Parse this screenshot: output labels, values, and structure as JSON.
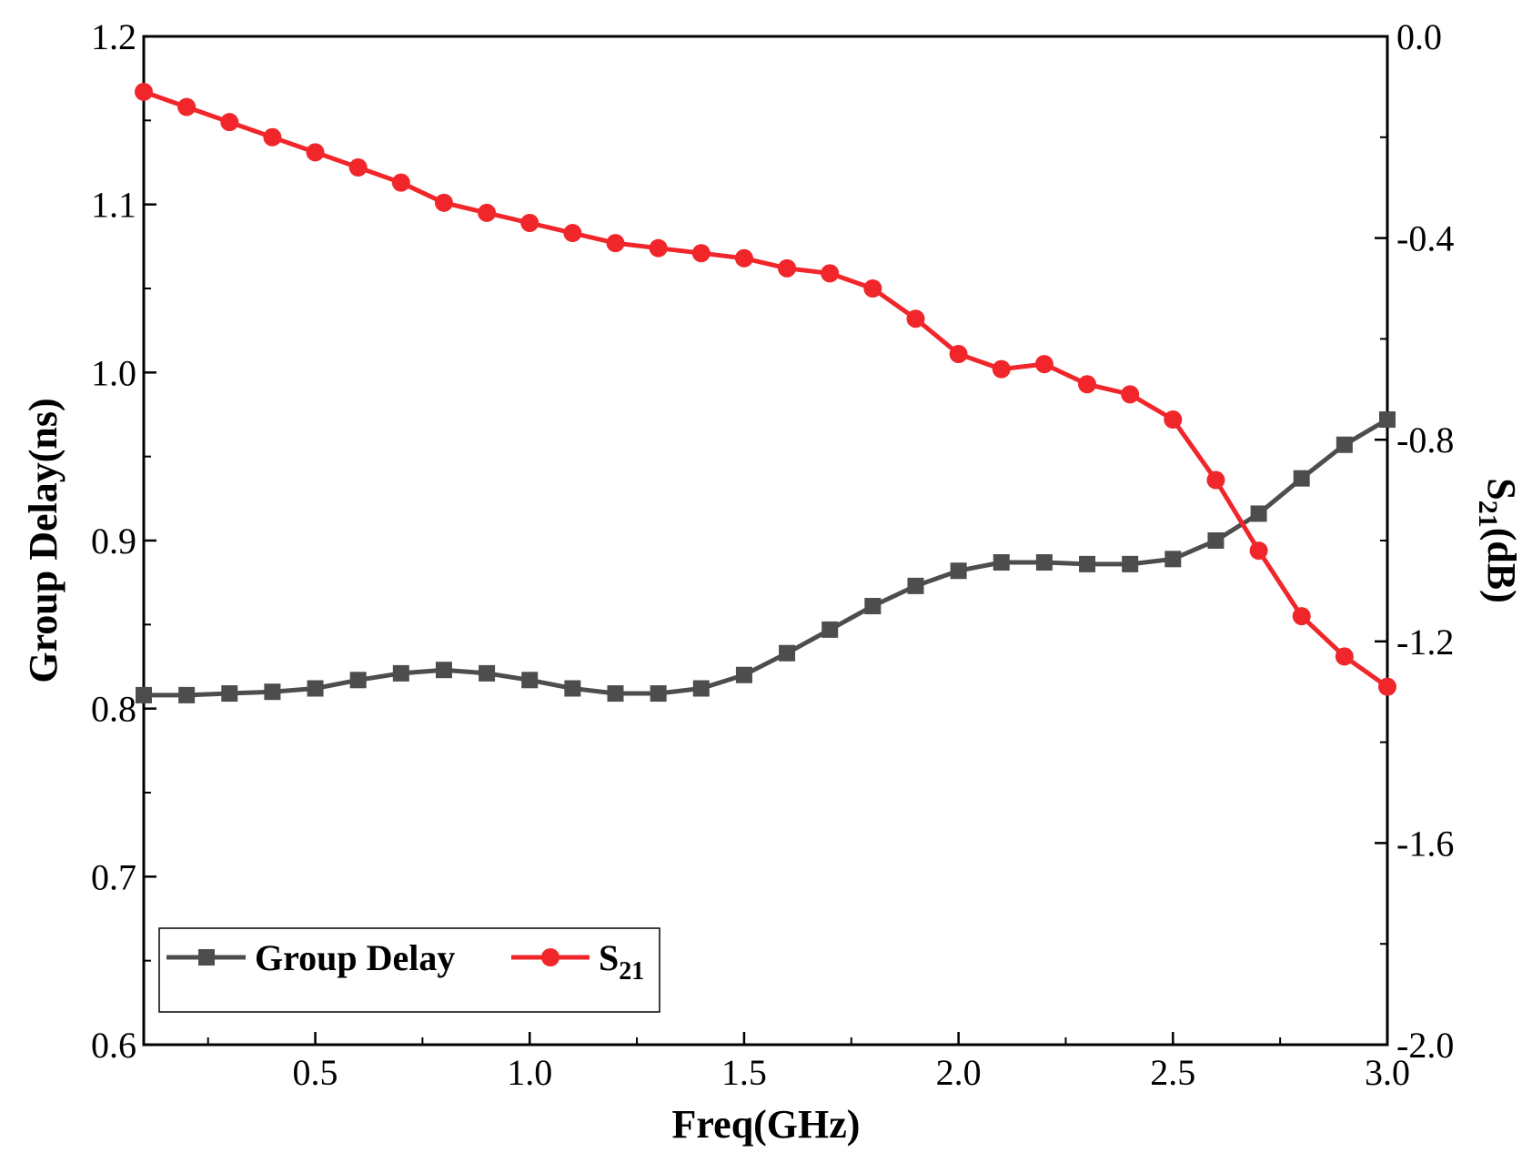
{
  "chart_data": {
    "type": "line",
    "title": "",
    "xlabel": "Freq(GHz)",
    "ylabel_left": "Group Delay(ns)",
    "ylabel_right_main": "S",
    "ylabel_right_sub": "21",
    "ylabel_right_tail": "(dB)",
    "xlim": [
      0.1,
      3.0
    ],
    "ylim_left": [
      0.6,
      1.2
    ],
    "ylim_right": [
      -2.0,
      0.0
    ],
    "x_ticks": [
      "0.5",
      "1.0",
      "1.5",
      "2.0",
      "2.5",
      "3.0"
    ],
    "y_left_ticks": [
      "0.6",
      "0.7",
      "0.8",
      "0.9",
      "1.0",
      "1.1",
      "1.2"
    ],
    "y_right_ticks": [
      "-2.0",
      "-1.6",
      "-1.2",
      "-0.8",
      "-0.4",
      "0.0"
    ],
    "grid": false,
    "legend_position": "bottom-left",
    "x": [
      0.1,
      0.2,
      0.3,
      0.4,
      0.5,
      0.6,
      0.7,
      0.8,
      0.9,
      1.0,
      1.1,
      1.2,
      1.3,
      1.4,
      1.5,
      1.6,
      1.7,
      1.8,
      1.9,
      2.0,
      2.1,
      2.2,
      2.3,
      2.4,
      2.5,
      2.6,
      2.7,
      2.8,
      2.9,
      3.0
    ],
    "series": [
      {
        "name": "Group Delay",
        "legend_label": "Group Delay",
        "axis": "left",
        "color": "#4d4d4d",
        "marker": "square",
        "values": [
          0.808,
          0.808,
          0.809,
          0.81,
          0.812,
          0.817,
          0.821,
          0.823,
          0.821,
          0.817,
          0.812,
          0.809,
          0.809,
          0.812,
          0.82,
          0.833,
          0.847,
          0.861,
          0.873,
          0.882,
          0.887,
          0.887,
          0.886,
          0.886,
          0.889,
          0.9,
          0.916,
          0.937,
          0.957,
          0.972
        ]
      },
      {
        "name": "S21",
        "legend_main": "S",
        "legend_sub": "21",
        "axis": "right",
        "color": "#f0262b",
        "marker": "circle",
        "values": [
          -0.11,
          -0.14,
          -0.17,
          -0.2,
          -0.23,
          -0.26,
          -0.29,
          -0.33,
          -0.35,
          -0.37,
          -0.39,
          -0.41,
          -0.42,
          -0.43,
          -0.44,
          -0.46,
          -0.47,
          -0.5,
          -0.56,
          -0.63,
          -0.66,
          -0.65,
          -0.69,
          -0.71,
          -0.76,
          -0.88,
          -1.02,
          -1.15,
          -1.23,
          -1.29
        ]
      }
    ]
  }
}
